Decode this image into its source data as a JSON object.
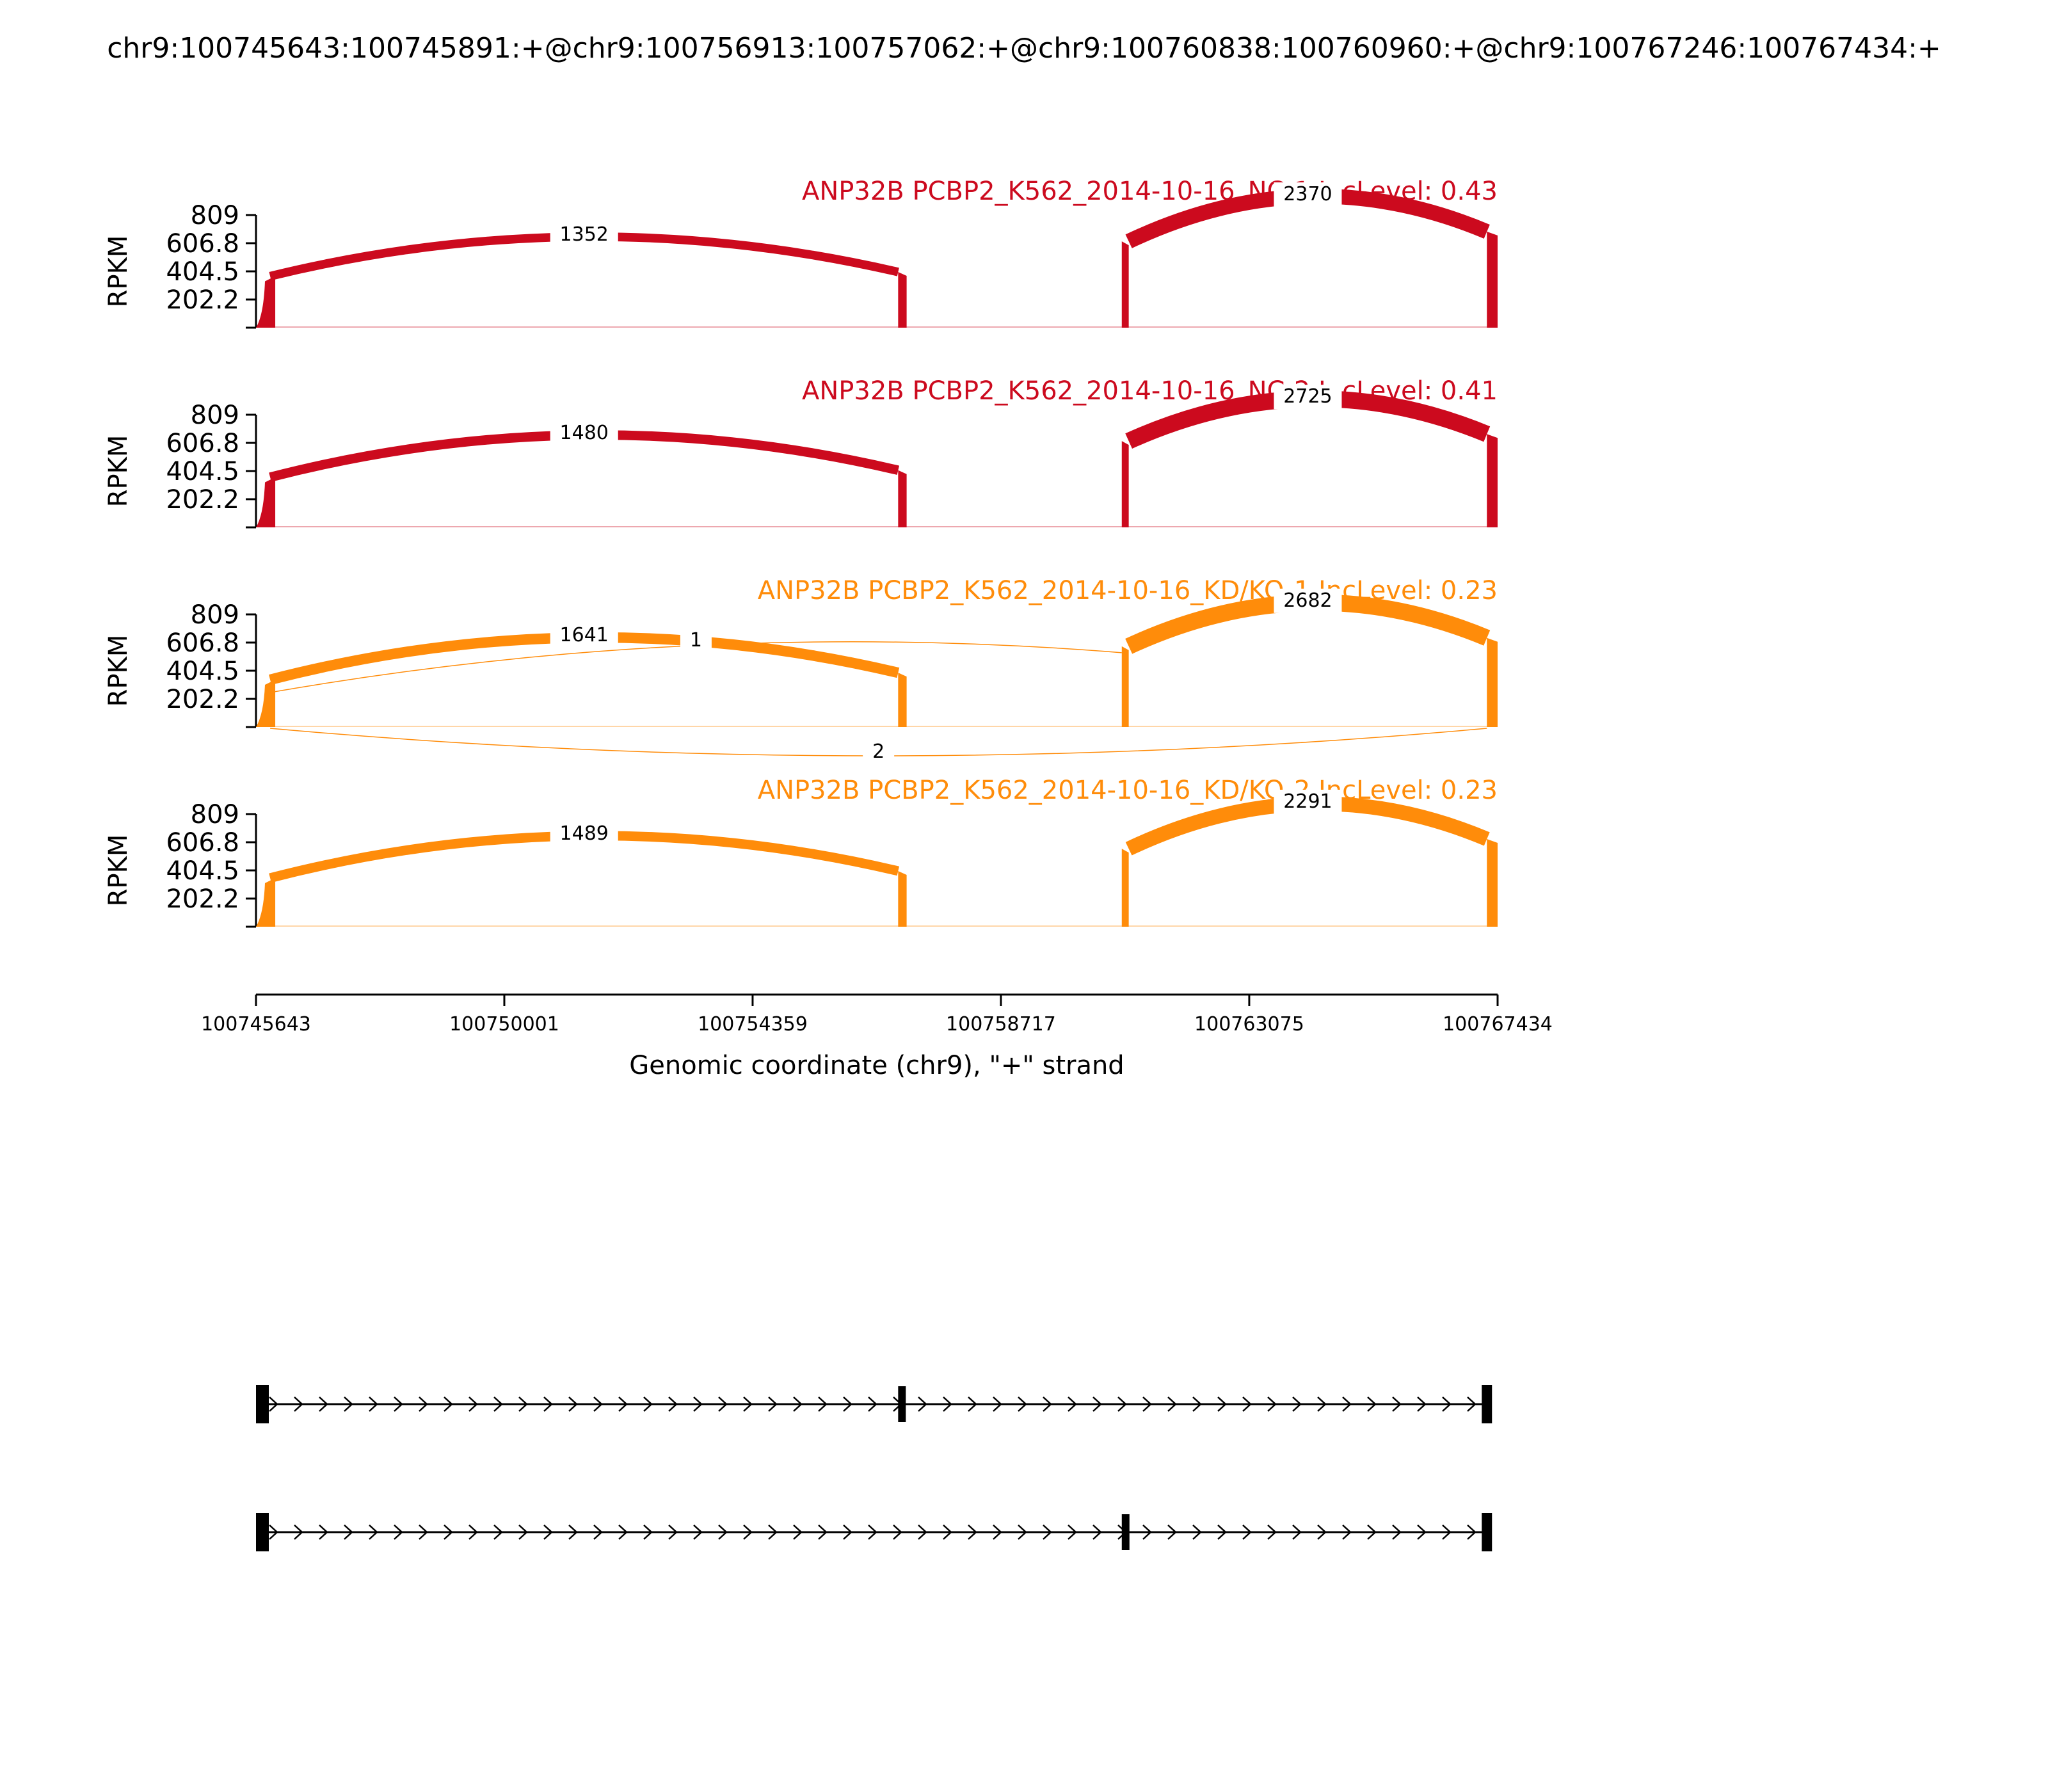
{
  "title": "chr9:100745643:100745891:+@chr9:100756913:100757062:+@chr9:100760838:100760960:+@chr9:100767246:100767434:+",
  "chart_data": {
    "type": "sashimi",
    "xlabel": "Genomic coordinate (chr9), \"+\" strand",
    "xlim": [
      100745643,
      100767434
    ],
    "xticks": [
      "100745643",
      "100750001",
      "100754359",
      "100758717",
      "100763075",
      "100767434"
    ],
    "ylabel": "RPKM",
    "ylim": [
      0,
      809
    ],
    "yticks": [
      "809",
      "606.8",
      "404.5",
      "202.2"
    ],
    "exons": [
      [
        100745643,
        100745891
      ],
      [
        100756913,
        100757062
      ],
      [
        100760838,
        100760960
      ],
      [
        100767246,
        100767434
      ]
    ],
    "panels": [
      {
        "label": "ANP32B PCBP2_K562_2014-10-16_NC-1 IncLevel: 0.43",
        "color": "#cc0a1e",
        "coverage": [
          370,
          400,
          620,
          690
        ],
        "junctions": [
          {
            "start": 100745891,
            "end": 100756913,
            "count": 1352,
            "label": "1352",
            "side": "above"
          },
          {
            "start": 100760960,
            "end": 100767246,
            "count": 2370,
            "label": "2370",
            "side": "above"
          }
        ]
      },
      {
        "label": "ANP32B PCBP2_K562_2014-10-16_NC-2 IncLevel: 0.41",
        "color": "#cc0a1e",
        "coverage": [
          360,
          410,
          620,
          670
        ],
        "junctions": [
          {
            "start": 100745891,
            "end": 100756913,
            "count": 1480,
            "label": "1480",
            "side": "above"
          },
          {
            "start": 100760960,
            "end": 100767246,
            "count": 2725,
            "label": "2725",
            "side": "above"
          }
        ]
      },
      {
        "label": "ANP32B PCBP2_K562_2014-10-16_KD/KO-1 IncLevel: 0.23",
        "color": "#ff8c0a",
        "coverage": [
          340,
          390,
          580,
          640
        ],
        "junctions": [
          {
            "start": 100745891,
            "end": 100756913,
            "count": 1641,
            "label": "1641",
            "side": "above"
          },
          {
            "start": 100760960,
            "end": 100767246,
            "count": 2682,
            "label": "2682",
            "side": "above"
          },
          {
            "start": 100745891,
            "end": 100760838,
            "count": 1,
            "label": "1",
            "side": "above"
          },
          {
            "start": 100745891,
            "end": 100767246,
            "count": 2,
            "label": "2",
            "side": "below"
          }
        ]
      },
      {
        "label": "ANP32B PCBP2_K562_2014-10-16_KD/KO-2 IncLevel: 0.23",
        "color": "#ff8c0a",
        "coverage": [
          350,
          400,
          560,
          630
        ],
        "junctions": [
          {
            "start": 100745891,
            "end": 100756913,
            "count": 1489,
            "label": "1489",
            "side": "above"
          },
          {
            "start": 100760960,
            "end": 100767246,
            "count": 2291,
            "label": "2291",
            "side": "above"
          }
        ]
      }
    ],
    "isoforms": [
      {
        "exons": [
          [
            100745643,
            100745891
          ],
          [
            100756913,
            100757062
          ],
          [
            100767246,
            100767434
          ]
        ]
      },
      {
        "exons": [
          [
            100745643,
            100745891
          ],
          [
            100760838,
            100760960
          ],
          [
            100767246,
            100767434
          ]
        ]
      }
    ]
  }
}
